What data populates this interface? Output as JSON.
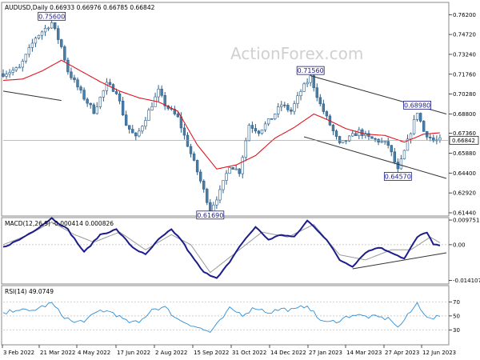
{
  "header": {
    "main": "AUDUSD,Daily  0.66933 0.66976 0.66785 0.66842",
    "macd": "MACD(12,26,9) -0.000414 0.000826",
    "rsi": "RSI(14) 49.0749"
  },
  "watermark": "ActionForex.com",
  "chart_data": [
    {
      "type": "candlestick",
      "name": "AUDUSD,Daily",
      "ohlc_text": "0.66933 0.66976 0.66785 0.66842",
      "last_price": "0.66842",
      "y_ticks": [
        "0.76200",
        "0.74720",
        "0.73240",
        "0.71760",
        "0.70280",
        "0.68800",
        "0.67360",
        "0.65880",
        "0.64400",
        "0.62920",
        "0.61440"
      ],
      "ylim": [
        0.6126,
        0.7705
      ],
      "x_ticks": [
        "3 Feb 2022",
        "21 Mar 2022",
        "4 May 2022",
        "17 Jun 2022",
        "2 Aug 2022",
        "15 Sep 2022",
        "31 Oct 2022",
        "14 Dec 2022",
        "27 Jan 2023",
        "14 Mar 2023",
        "27 Apr 2023",
        "12 Jun 2023"
      ],
      "annotations": [
        {
          "label": "0.75600",
          "value": 0.756,
          "idx": 15
        },
        {
          "label": "0.71560",
          "value": 0.7156,
          "idx": 95
        },
        {
          "label": "0.61690",
          "value": 0.6169,
          "idx": 64
        },
        {
          "label": "0.68980",
          "value": 0.6898,
          "idx": 128
        },
        {
          "label": "0.64570",
          "value": 0.6457,
          "idx": 122
        }
      ],
      "path": [
        [
          0,
          0.718
        ],
        [
          5,
          0.722
        ],
        [
          10,
          0.745
        ],
        [
          15,
          0.756
        ],
        [
          18,
          0.738
        ],
        [
          20,
          0.72
        ],
        [
          25,
          0.7
        ],
        [
          28,
          0.69
        ],
        [
          32,
          0.71
        ],
        [
          35,
          0.705
        ],
        [
          38,
          0.68
        ],
        [
          41,
          0.67
        ],
        [
          45,
          0.69
        ],
        [
          48,
          0.705
        ],
        [
          50,
          0.695
        ],
        [
          54,
          0.685
        ],
        [
          57,
          0.665
        ],
        [
          60,
          0.645
        ],
        [
          64,
          0.6169
        ],
        [
          67,
          0.63
        ],
        [
          70,
          0.65
        ],
        [
          73,
          0.645
        ],
        [
          76,
          0.68
        ],
        [
          79,
          0.675
        ],
        [
          83,
          0.685
        ],
        [
          86,
          0.695
        ],
        [
          89,
          0.69
        ],
        [
          92,
          0.705
        ],
        [
          95,
          0.7156
        ],
        [
          98,
          0.695
        ],
        [
          101,
          0.68
        ],
        [
          104,
          0.665
        ],
        [
          107,
          0.67
        ],
        [
          110,
          0.675
        ],
        [
          113,
          0.67
        ],
        [
          116,
          0.668
        ],
        [
          119,
          0.665
        ],
        [
          122,
          0.6457
        ],
        [
          124,
          0.66
        ],
        [
          126,
          0.675
        ],
        [
          128,
          0.6898
        ],
        [
          130,
          0.675
        ],
        [
          133,
          0.668
        ],
        [
          135,
          0.6684
        ]
      ],
      "ma_path": [
        [
          0,
          0.713
        ],
        [
          6,
          0.714
        ],
        [
          12,
          0.72
        ],
        [
          18,
          0.728
        ],
        [
          24,
          0.72
        ],
        [
          30,
          0.712
        ],
        [
          36,
          0.705
        ],
        [
          42,
          0.7
        ],
        [
          48,
          0.697
        ],
        [
          54,
          0.69
        ],
        [
          60,
          0.665
        ],
        [
          66,
          0.647
        ],
        [
          72,
          0.65
        ],
        [
          78,
          0.657
        ],
        [
          84,
          0.67
        ],
        [
          90,
          0.678
        ],
        [
          96,
          0.688
        ],
        [
          100,
          0.684
        ],
        [
          106,
          0.677
        ],
        [
          112,
          0.673
        ],
        [
          118,
          0.672
        ],
        [
          124,
          0.667
        ],
        [
          130,
          0.673
        ],
        [
          135,
          0.674
        ]
      ],
      "trendlines": [
        [
          [
            0,
            0.705
          ],
          [
            18,
            0.698
          ]
        ],
        [
          [
            95,
            0.7165
          ],
          [
            137,
            0.688
          ]
        ],
        [
          [
            93,
            0.671
          ],
          [
            137,
            0.64
          ]
        ]
      ]
    },
    {
      "type": "line",
      "name": "MACD(12,26,9)",
      "values_text": "-0.000414 0.000826",
      "y_ticks": [
        "0.009751",
        "0.00",
        "-0.014107"
      ],
      "ylim": [
        -0.0152,
        0.0104
      ],
      "macd_path": [
        [
          0,
          -0.001
        ],
        [
          5,
          0.002
        ],
        [
          10,
          0.006
        ],
        [
          15,
          0.0105
        ],
        [
          20,
          0.006
        ],
        [
          25,
          -0.003
        ],
        [
          30,
          0.004
        ],
        [
          35,
          0.006
        ],
        [
          40,
          -0.001
        ],
        [
          44,
          -0.004
        ],
        [
          48,
          0.002
        ],
        [
          52,
          0.006
        ],
        [
          55,
          0.002
        ],
        [
          58,
          -0.004
        ],
        [
          62,
          -0.011
        ],
        [
          66,
          -0.013
        ],
        [
          70,
          -0.007
        ],
        [
          74,
          0.001
        ],
        [
          78,
          0.007
        ],
        [
          82,
          0.002
        ],
        [
          86,
          0.004
        ],
        [
          90,
          0.003
        ],
        [
          94,
          0.0095
        ],
        [
          97,
          0.006
        ],
        [
          100,
          0.002
        ],
        [
          104,
          -0.006
        ],
        [
          108,
          -0.0085
        ],
        [
          112,
          -0.003
        ],
        [
          116,
          -0.001
        ],
        [
          120,
          -0.003
        ],
        [
          124,
          -0.0055
        ],
        [
          128,
          0.003
        ],
        [
          131,
          0.005
        ],
        [
          133,
          0.0
        ],
        [
          135,
          -0.0004
        ]
      ],
      "signal_path": [
        [
          0,
          0.0
        ],
        [
          8,
          0.004
        ],
        [
          15,
          0.009
        ],
        [
          22,
          0.004
        ],
        [
          28,
          0.001
        ],
        [
          36,
          0.005
        ],
        [
          44,
          -0.002
        ],
        [
          52,
          0.004
        ],
        [
          58,
          0.0
        ],
        [
          64,
          -0.011
        ],
        [
          72,
          -0.003
        ],
        [
          80,
          0.005
        ],
        [
          88,
          0.003
        ],
        [
          96,
          0.008
        ],
        [
          104,
          -0.004
        ],
        [
          112,
          -0.006
        ],
        [
          120,
          -0.002
        ],
        [
          126,
          -0.002
        ],
        [
          132,
          0.003
        ],
        [
          135,
          0.0008
        ]
      ],
      "trendline": [
        [
          108,
          -0.0095
        ],
        [
          137,
          -0.0032
        ]
      ]
    },
    {
      "type": "line",
      "name": "RSI(14)",
      "value_text": "49.0749",
      "y_ticks": [
        "70",
        "50",
        "30"
      ],
      "ylim": [
        10,
        92
      ],
      "levels": [
        70,
        50,
        30
      ],
      "path": [
        [
          0,
          52
        ],
        [
          4,
          60
        ],
        [
          8,
          56
        ],
        [
          12,
          63
        ],
        [
          15,
          68
        ],
        [
          18,
          52
        ],
        [
          22,
          40
        ],
        [
          26,
          45
        ],
        [
          30,
          58
        ],
        [
          34,
          55
        ],
        [
          38,
          42
        ],
        [
          42,
          40
        ],
        [
          46,
          60
        ],
        [
          50,
          62
        ],
        [
          54,
          45
        ],
        [
          58,
          38
        ],
        [
          62,
          30
        ],
        [
          64,
          27
        ],
        [
          67,
          42
        ],
        [
          70,
          60
        ],
        [
          74,
          52
        ],
        [
          78,
          62
        ],
        [
          82,
          55
        ],
        [
          86,
          60
        ],
        [
          90,
          58
        ],
        [
          94,
          66
        ],
        [
          97,
          48
        ],
        [
          100,
          40
        ],
        [
          104,
          44
        ],
        [
          108,
          52
        ],
        [
          112,
          49
        ],
        [
          116,
          48
        ],
        [
          120,
          45
        ],
        [
          122,
          33
        ],
        [
          125,
          50
        ],
        [
          128,
          68
        ],
        [
          130,
          55
        ],
        [
          132,
          45
        ],
        [
          135,
          49
        ]
      ]
    }
  ]
}
